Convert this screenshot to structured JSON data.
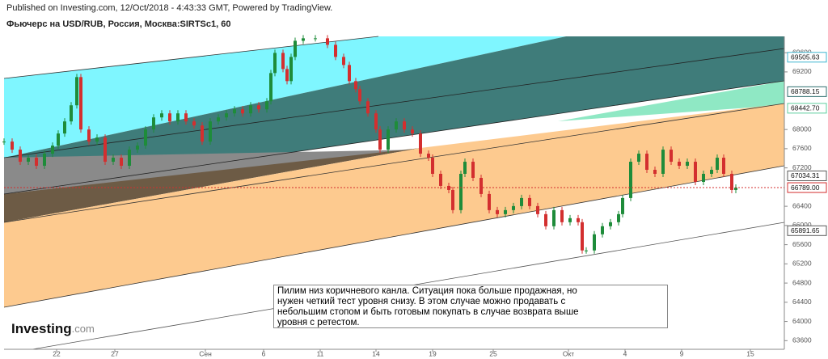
{
  "header": {
    "published": "Published on Investing.com, 12/Oct/2018 - 4:43:33 GMT, Powered by TradingView.",
    "title": "Фьючерс на USD/RUB, Россия, Москва:SIRTSc1, 60"
  },
  "logo": {
    "brand": "Investing",
    "suffix": ".com"
  },
  "annotation": {
    "lines": [
      "Пилим низ коричневого канла. Ситуация пока больше продажная, но",
      "нужен четкий тест уровня снизу. В  этом случае можно продавать с",
      "небольшим стопом и быть готовым покупать в случае возврата выше",
      "уровня с ретестом."
    ]
  },
  "chart_data": {
    "type": "candlestick",
    "up_color": "#1e8c3a",
    "down_color": "#d32f2f",
    "x": [
      0,
      10,
      20,
      30,
      40,
      50,
      60,
      67,
      75,
      83,
      90,
      95,
      105,
      115,
      125,
      135,
      145,
      155,
      165,
      175,
      185,
      195,
      205,
      215,
      225,
      235,
      245,
      255,
      265,
      275,
      285,
      295,
      305,
      315,
      325,
      330,
      335,
      345,
      350,
      355,
      360,
      370,
      385,
      400,
      410,
      420,
      427,
      435,
      440,
      450,
      460,
      465,
      475,
      485,
      495,
      505,
      515,
      525,
      530,
      540,
      550,
      555,
      565,
      570,
      580,
      590,
      600,
      610,
      620,
      630,
      640,
      650,
      660,
      670,
      680,
      690,
      700,
      710,
      715,
      720,
      730,
      740,
      750,
      760,
      765,
      775,
      785,
      795,
      805,
      815,
      825,
      835,
      845,
      855,
      865,
      875,
      882,
      890,
      900,
      905
    ],
    "values": [
      67748,
      67580,
      67328,
      67412,
      67244,
      67496,
      67664,
      67916,
      68168,
      68504,
      69092,
      68000,
      67748,
      67832,
      67328,
      67412,
      67244,
      67580,
      67664,
      68000,
      68252,
      68336,
      68168,
      68336,
      68168,
      68084,
      67748,
      68168,
      68252,
      68336,
      68420,
      68336,
      68504,
      68420,
      68588,
      69176,
      69596,
      69260,
      69008,
      69512,
      69848,
      69900,
      69900,
      69764,
      69512,
      69344,
      69008,
      68840,
      68588,
      68336,
      68000,
      67580,
      68000,
      68168,
      68000,
      67916,
      67496,
      67412,
      67076,
      66824,
      66740,
      66320,
      67076,
      67328,
      66992,
      66656,
      66320,
      66236,
      66320,
      66404,
      66572,
      66404,
      66236,
      65984,
      66320,
      66068,
      66152,
      66068,
      65480,
      65480,
      65816,
      65984,
      66068,
      66236,
      66572,
      67328,
      67496,
      67160,
      67076,
      67580,
      67328,
      67244,
      67328,
      66908,
      67076,
      67160,
      67412,
      67076,
      66740,
      66789
    ],
    "xlim": [
      0,
      965
    ],
    "xticks": [
      {
        "value": 65,
        "label": "22"
      },
      {
        "value": 137,
        "label": "27"
      },
      {
        "value": 249,
        "label": "Сен"
      },
      {
        "value": 321,
        "label": "6"
      },
      {
        "value": 391,
        "label": "11"
      },
      {
        "value": 460,
        "label": "14"
      },
      {
        "value": 530,
        "label": "19"
      },
      {
        "value": 605,
        "label": "25"
      },
      {
        "value": 698,
        "label": "Окт"
      },
      {
        "value": 768,
        "label": "4"
      },
      {
        "value": 838,
        "label": "9"
      },
      {
        "value": 923,
        "label": "15"
      }
    ],
    "ylim": [
      63420,
      69940
    ],
    "yticks": [
      69600,
      69200,
      68000,
      67600,
      67200,
      66400,
      66000,
      65600,
      65200,
      64800,
      64400,
      64000,
      63600
    ],
    "levels": [
      {
        "value": 69505.63,
        "label": "69505.63",
        "color": "#3fb6d0"
      },
      {
        "value": 68788.15,
        "label": "68788.15",
        "color": "#2f6f6f"
      },
      {
        "value": 68442.7,
        "label": "68442.70",
        "color": "#5fcf9f"
      },
      {
        "value": 67034.31,
        "label": "67034.31",
        "color": "#5a5a5a"
      },
      {
        "value": 66789,
        "label": "66789.00",
        "color": "#d32f2f"
      },
      {
        "value": 65891.65,
        "label": "65891.65",
        "color": "#5a5a5a"
      }
    ]
  }
}
